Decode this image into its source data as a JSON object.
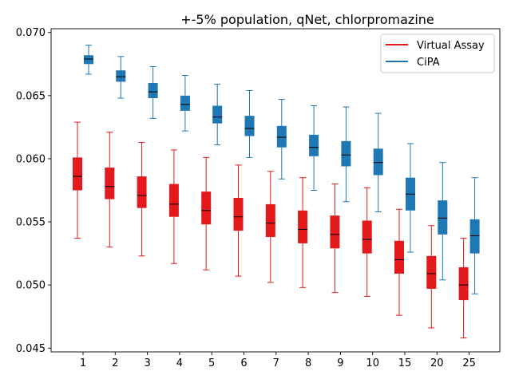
{
  "chart_data": {
    "type": "box",
    "title": "+-5% population, qNet, chlorpromazine",
    "xlabel": "",
    "ylabel": "",
    "categories": [
      "1",
      "2",
      "3",
      "4",
      "5",
      "6",
      "7",
      "8",
      "9",
      "10",
      "15",
      "20",
      "25"
    ],
    "ylim": [
      0.0447,
      0.0703
    ],
    "yticks": [
      "0.045",
      "0.050",
      "0.055",
      "0.060",
      "0.065",
      "0.070"
    ],
    "ytick_values": [
      0.045,
      0.05,
      0.055,
      0.06,
      0.065,
      0.07
    ],
    "grid": false,
    "legend": {
      "placement": "top-right",
      "entries": [
        "Virtual Assay",
        "CiPA"
      ]
    },
    "series": [
      {
        "name": "Virtual Assay",
        "color": "#e31a1c",
        "boxes": [
          {
            "whislo": 0.0537,
            "q1": 0.0575,
            "median": 0.0586,
            "q3": 0.0601,
            "whishi": 0.0629
          },
          {
            "whislo": 0.053,
            "q1": 0.0568,
            "median": 0.0578,
            "q3": 0.0593,
            "whishi": 0.0621
          },
          {
            "whislo": 0.0523,
            "q1": 0.0561,
            "median": 0.0571,
            "q3": 0.0586,
            "whishi": 0.0613
          },
          {
            "whislo": 0.0517,
            "q1": 0.0554,
            "median": 0.0564,
            "q3": 0.058,
            "whishi": 0.0607
          },
          {
            "whislo": 0.0512,
            "q1": 0.0548,
            "median": 0.0559,
            "q3": 0.0574,
            "whishi": 0.0601
          },
          {
            "whislo": 0.0507,
            "q1": 0.0543,
            "median": 0.0554,
            "q3": 0.0569,
            "whishi": 0.0595
          },
          {
            "whislo": 0.0502,
            "q1": 0.0538,
            "median": 0.0549,
            "q3": 0.0564,
            "whishi": 0.059
          },
          {
            "whislo": 0.0498,
            "q1": 0.0533,
            "median": 0.0544,
            "q3": 0.0559,
            "whishi": 0.0585
          },
          {
            "whislo": 0.0494,
            "q1": 0.0529,
            "median": 0.054,
            "q3": 0.0555,
            "whishi": 0.058
          },
          {
            "whislo": 0.0491,
            "q1": 0.0525,
            "median": 0.0536,
            "q3": 0.0551,
            "whishi": 0.0577
          },
          {
            "whislo": 0.0476,
            "q1": 0.0509,
            "median": 0.052,
            "q3": 0.0535,
            "whishi": 0.056
          },
          {
            "whislo": 0.0466,
            "q1": 0.0497,
            "median": 0.0509,
            "q3": 0.0523,
            "whishi": 0.0547
          },
          {
            "whislo": 0.0458,
            "q1": 0.0488,
            "median": 0.05,
            "q3": 0.0514,
            "whishi": 0.0537
          }
        ]
      },
      {
        "name": "CiPA",
        "color": "#1f77b4",
        "boxes": [
          {
            "whislo": 0.0667,
            "q1": 0.0675,
            "median": 0.0679,
            "q3": 0.0682,
            "whishi": 0.069
          },
          {
            "whislo": 0.0648,
            "q1": 0.0661,
            "median": 0.0665,
            "q3": 0.067,
            "whishi": 0.0681
          },
          {
            "whislo": 0.0632,
            "q1": 0.0648,
            "median": 0.0653,
            "q3": 0.066,
            "whishi": 0.0673
          },
          {
            "whislo": 0.0622,
            "q1": 0.0638,
            "median": 0.0643,
            "q3": 0.065,
            "whishi": 0.0666
          },
          {
            "whislo": 0.0611,
            "q1": 0.0628,
            "median": 0.0633,
            "q3": 0.0642,
            "whishi": 0.0659
          },
          {
            "whislo": 0.0601,
            "q1": 0.0618,
            "median": 0.0624,
            "q3": 0.0634,
            "whishi": 0.0654
          },
          {
            "whislo": 0.0584,
            "q1": 0.0609,
            "median": 0.0617,
            "q3": 0.0626,
            "whishi": 0.0647
          },
          {
            "whislo": 0.0575,
            "q1": 0.0602,
            "median": 0.0609,
            "q3": 0.0619,
            "whishi": 0.0642
          },
          {
            "whislo": 0.0566,
            "q1": 0.0594,
            "median": 0.0603,
            "q3": 0.0614,
            "whishi": 0.0641
          },
          {
            "whislo": 0.0558,
            "q1": 0.0587,
            "median": 0.0597,
            "q3": 0.0608,
            "whishi": 0.0636
          },
          {
            "whislo": 0.0526,
            "q1": 0.0559,
            "median": 0.0572,
            "q3": 0.0585,
            "whishi": 0.0612
          },
          {
            "whislo": 0.0504,
            "q1": 0.054,
            "median": 0.0553,
            "q3": 0.0567,
            "whishi": 0.0597
          },
          {
            "whislo": 0.0493,
            "q1": 0.0525,
            "median": 0.0539,
            "q3": 0.0552,
            "whishi": 0.0585
          }
        ]
      }
    ]
  }
}
